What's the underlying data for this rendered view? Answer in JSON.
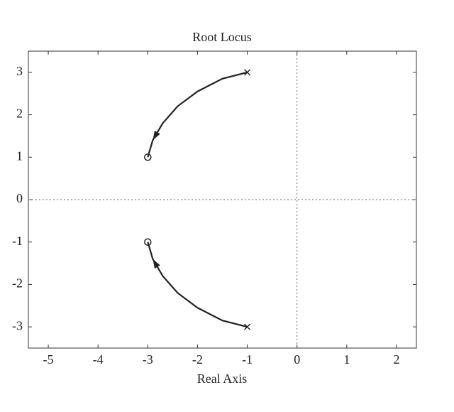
{
  "chart_data": {
    "type": "line",
    "title": "Root Locus",
    "xlabel": "Real Axis",
    "xlim": [
      -5.4,
      2.4
    ],
    "ylim": [
      -3.5,
      3.5
    ],
    "xticks": [
      -5,
      -4,
      -3,
      -2,
      -1,
      0,
      1,
      2
    ],
    "yticks": [
      -3,
      -2,
      -1,
      0,
      1,
      2,
      3
    ],
    "series": [
      {
        "color": "#222222",
        "x": [
          -1,
          -1.5,
          -2,
          -2.4,
          -2.7,
          -2.9,
          -3
        ],
        "values": [
          3,
          2.85,
          2.55,
          2.2,
          1.8,
          1.4,
          1
        ]
      },
      {
        "color": "#222222",
        "x": [
          -1,
          -1.5,
          -2,
          -2.4,
          -2.7,
          -2.9,
          -3
        ],
        "values": [
          -3,
          -2.85,
          -2.55,
          -2.2,
          -1.8,
          -1.4,
          -1
        ]
      }
    ],
    "poles": {
      "x": [
        -1,
        -1
      ],
      "values": [
        3,
        -3
      ]
    },
    "zeros": {
      "x": [
        -3,
        -3
      ],
      "values": [
        1,
        -1
      ]
    }
  }
}
